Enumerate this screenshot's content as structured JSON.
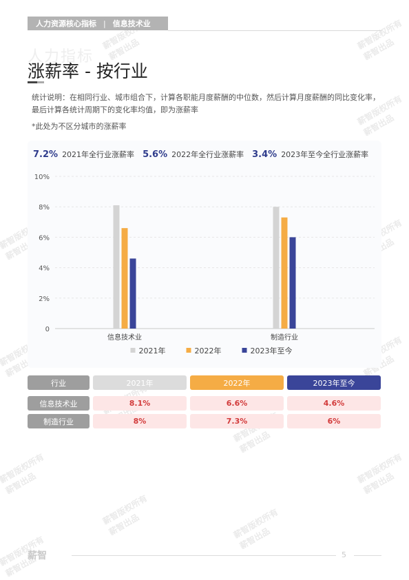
{
  "header": {
    "section": "人力资源核心指标",
    "separator": "|",
    "industry": "信息技术业"
  },
  "ghost_title": "人力指标",
  "title": "涨薪率 - 按行业",
  "note": "统计说明：在相同行业、城市组合下，计算各职能月度薪酬的中位数，然后计算月度薪酬的同比变化率，最后计算各统计周期下的变化率均值，即为涨薪率",
  "footnote": "*此处为不区分城市的涨薪率",
  "kpis": [
    {
      "value": "7.2%",
      "label": "2021年全行业涨薪率"
    },
    {
      "value": "5.6%",
      "label": "2022年全行业涨薪率"
    },
    {
      "value": "3.4%",
      "label": "2023年至今全行业涨薪率"
    }
  ],
  "chart_data": {
    "type": "bar",
    "categories": [
      "信息技术业",
      "制造行业"
    ],
    "series": [
      {
        "name": "2021年",
        "values": [
          8.1,
          8.0
        ],
        "color": "#d4d4d4"
      },
      {
        "name": "2022年",
        "values": [
          6.6,
          7.3
        ],
        "color": "#f5ac45"
      },
      {
        "name": "2023年至今",
        "values": [
          4.6,
          6.0
        ],
        "color": "#3a4599"
      }
    ],
    "y_ticks": [
      "0",
      "2%",
      "4%",
      "6%",
      "8%",
      "10%"
    ],
    "ylim": [
      0,
      10
    ],
    "grid": true,
    "legend": "bottom"
  },
  "table": {
    "headers": [
      "行业",
      "2021年",
      "2022年",
      "2023年至今"
    ],
    "rows": [
      {
        "label": "信息技术业",
        "values": [
          "8.1%",
          "6.6%",
          "4.6%"
        ]
      },
      {
        "label": "制造行业",
        "values": [
          "8%",
          "7.3%",
          "6%"
        ]
      }
    ]
  },
  "watermark": [
    "薪智版权所有",
    "薪智出品"
  ],
  "footer": {
    "logo": "薪智",
    "page": "5"
  },
  "colors": {
    "accent_navy": "#3a4599",
    "accent_orange": "#f5ac45",
    "grey": "#9e9e9e",
    "value_red": "#d23a3a"
  }
}
